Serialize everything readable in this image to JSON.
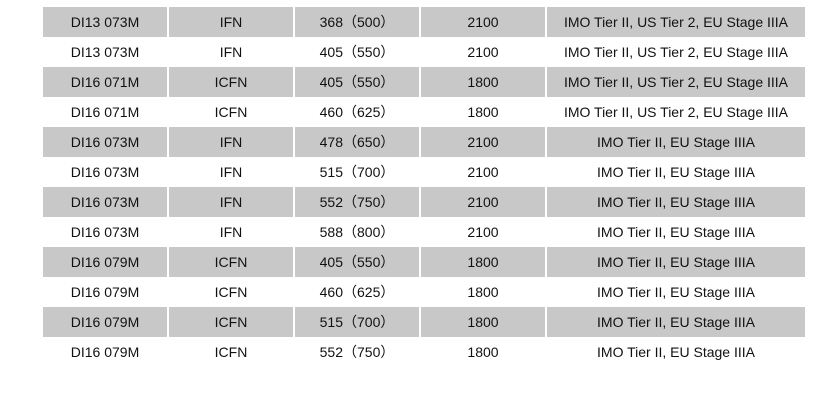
{
  "rows": [
    [
      "DI13 073M",
      "IFN",
      "368（500）",
      "2100",
      "IMO Tier II, US Tier 2, EU Stage IIIA"
    ],
    [
      "DI13 073M",
      "IFN",
      "405（550）",
      "2100",
      "IMO Tier II, US Tier 2, EU Stage IIIA"
    ],
    [
      "DI16 071M",
      "ICFN",
      "405（550）",
      "1800",
      "IMO Tier II, US Tier 2, EU Stage IIIA"
    ],
    [
      "DI16 071M",
      "ICFN",
      "460（625）",
      "1800",
      "IMO Tier II, US Tier 2, EU Stage IIIA"
    ],
    [
      "DI16 073M",
      "IFN",
      "478（650）",
      "2100",
      "IMO Tier II, EU Stage IIIA"
    ],
    [
      "DI16 073M",
      "IFN",
      "515（700）",
      "2100",
      "IMO Tier II, EU Stage IIIA"
    ],
    [
      "DI16 073M",
      "IFN",
      "552（750）",
      "2100",
      "IMO Tier II, EU Stage IIIA"
    ],
    [
      "DI16 073M",
      "IFN",
      "588（800）",
      "2100",
      "IMO Tier II, EU Stage IIIA"
    ],
    [
      "DI16 079M",
      "ICFN",
      "405（550）",
      "1800",
      "IMO Tier II, EU Stage IIIA"
    ],
    [
      "DI16 079M",
      "ICFN",
      "460（625）",
      "1800",
      "IMO Tier II, EU Stage IIIA"
    ],
    [
      "DI16 079M",
      "ICFN",
      "515（700）",
      "1800",
      "IMO Tier II, EU Stage IIIA"
    ],
    [
      "DI16 079M",
      "ICFN",
      "552（750）",
      "1800",
      "IMO Tier II, EU Stage IIIA"
    ]
  ],
  "colors": {
    "stripe": "#c8c8c8"
  }
}
